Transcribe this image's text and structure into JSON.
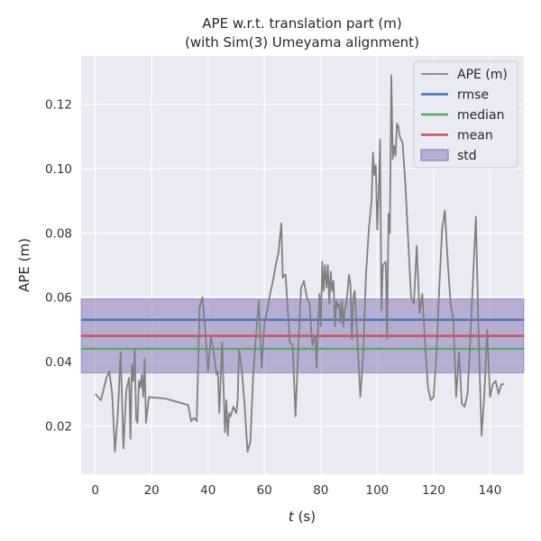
{
  "chart_data": {
    "type": "line",
    "title_line1": "APE w.r.t. translation part (m)",
    "title_line2": "(with Sim(3) Umeyama alignment)",
    "xlabel_var": "t",
    "xlabel_unit": " (s)",
    "ylabel": "APE (m)",
    "xlim": [
      -5,
      152
    ],
    "ylim": [
      0.005,
      0.135
    ],
    "xticks": [
      0,
      20,
      40,
      60,
      80,
      100,
      120,
      140
    ],
    "yticks": [
      0.02,
      0.04,
      0.06,
      0.08,
      0.1,
      0.12
    ],
    "ytick_labels": [
      "0.02",
      "0.04",
      "0.06",
      "0.08",
      "0.10",
      "0.12"
    ],
    "grid": true,
    "legend_position": "top-right",
    "colors": {
      "ape": "#808080",
      "rmse": "#4c72b0",
      "median": "#55a868",
      "mean": "#c44e52",
      "std": "#8172b2",
      "background": "#eaeaf2",
      "grid": "#ffffff"
    },
    "stats": {
      "rmse": 0.053,
      "median": 0.044,
      "mean": 0.048,
      "std_low": 0.0365,
      "std_high": 0.0595
    },
    "legend": [
      {
        "key": "ape",
        "label": "APE (m)"
      },
      {
        "key": "rmse",
        "label": "rmse"
      },
      {
        "key": "median",
        "label": "median"
      },
      {
        "key": "mean",
        "label": "mean"
      },
      {
        "key": "std",
        "label": "std"
      }
    ],
    "series": [
      {
        "key": "ape",
        "x": [
          0,
          2,
          4,
          5,
          6,
          7,
          8,
          9,
          10,
          11,
          12,
          12.5,
          13,
          13.5,
          14,
          14.5,
          15,
          15.5,
          16,
          16.5,
          17,
          17.5,
          18,
          19,
          25,
          33,
          34,
          35,
          36,
          37,
          38,
          39,
          40,
          41,
          42,
          43,
          43.5,
          44,
          44.5,
          45,
          46,
          46.5,
          47,
          47.5,
          48,
          49,
          50,
          50.5,
          51,
          52,
          53,
          54,
          55,
          56,
          57,
          58,
          59,
          60,
          61,
          62,
          63,
          64,
          65,
          66,
          66.5,
          67,
          67.5,
          68,
          68.5,
          69,
          70,
          71,
          72,
          73,
          74,
          75,
          76,
          77,
          78,
          78.5,
          79,
          79.5,
          80,
          80.5,
          81,
          81.5,
          82,
          82.5,
          83,
          83.5,
          84,
          84.5,
          85,
          85.5,
          86,
          86.5,
          87,
          87.5,
          88,
          88.5,
          89,
          89.5,
          90,
          90.5,
          91,
          91.5,
          92,
          92.5,
          93,
          94,
          95,
          96,
          97,
          98,
          98.5,
          99,
          99.5,
          100,
          100.5,
          101,
          101.5,
          102,
          103,
          103.5,
          104,
          104.5,
          105,
          105.5,
          106,
          106.5,
          107,
          107.5,
          108,
          109,
          110,
          112,
          113,
          114,
          114.5,
          115,
          116,
          117,
          118,
          119,
          120,
          121,
          122,
          123,
          124,
          125,
          126,
          127,
          128,
          129,
          130,
          131,
          132,
          133,
          134,
          135,
          136,
          137,
          138,
          139,
          140,
          140.5,
          141,
          142,
          143,
          144,
          145
        ],
        "y": [
          0.03,
          0.028,
          0.035,
          0.037,
          0.03,
          0.012,
          0.024,
          0.043,
          0.013,
          0.031,
          0.035,
          0.016,
          0.039,
          0.034,
          0.044,
          0.022,
          0.021,
          0.034,
          0.032,
          0.036,
          0.029,
          0.041,
          0.021,
          0.029,
          0.0285,
          0.0265,
          0.0215,
          0.0225,
          0.0215,
          0.057,
          0.06,
          0.05,
          0.037,
          0.048,
          0.043,
          0.036,
          0.037,
          0.024,
          0.035,
          0.046,
          0.018,
          0.028,
          0.017,
          0.024,
          0.023,
          0.026,
          0.024,
          0.028,
          0.044,
          0.037,
          0.026,
          0.012,
          0.015,
          0.036,
          0.048,
          0.059,
          0.038,
          0.052,
          0.056,
          0.061,
          0.065,
          0.07,
          0.074,
          0.083,
          0.066,
          0.067,
          0.067,
          0.06,
          0.053,
          0.046,
          0.045,
          0.023,
          0.044,
          0.063,
          0.065,
          0.06,
          0.058,
          0.045,
          0.048,
          0.038,
          0.05,
          0.061,
          0.051,
          0.071,
          0.062,
          0.07,
          0.063,
          0.07,
          0.058,
          0.068,
          0.062,
          0.065,
          0.051,
          0.059,
          0.057,
          0.058,
          0.052,
          0.059,
          0.051,
          0.056,
          0.058,
          0.062,
          0.067,
          0.064,
          0.047,
          0.06,
          0.062,
          0.054,
          0.046,
          0.029,
          0.042,
          0.067,
          0.081,
          0.09,
          0.105,
          0.098,
          0.101,
          0.081,
          0.092,
          0.109,
          0.056,
          0.07,
          0.071,
          0.047,
          0.086,
          0.08,
          0.129,
          0.103,
          0.107,
          0.104,
          0.114,
          0.113,
          0.11,
          0.108,
          0.095,
          0.06,
          0.058,
          0.076,
          0.066,
          0.055,
          0.061,
          0.045,
          0.032,
          0.028,
          0.029,
          0.043,
          0.063,
          0.081,
          0.087,
          0.071,
          0.058,
          0.053,
          0.029,
          0.043,
          0.027,
          0.026,
          0.03,
          0.047,
          0.066,
          0.085,
          0.046,
          0.017,
          0.03,
          0.05,
          0.029,
          0.031,
          0.033,
          0.034,
          0.03,
          0.033,
          0.033
        ]
      }
    ]
  }
}
